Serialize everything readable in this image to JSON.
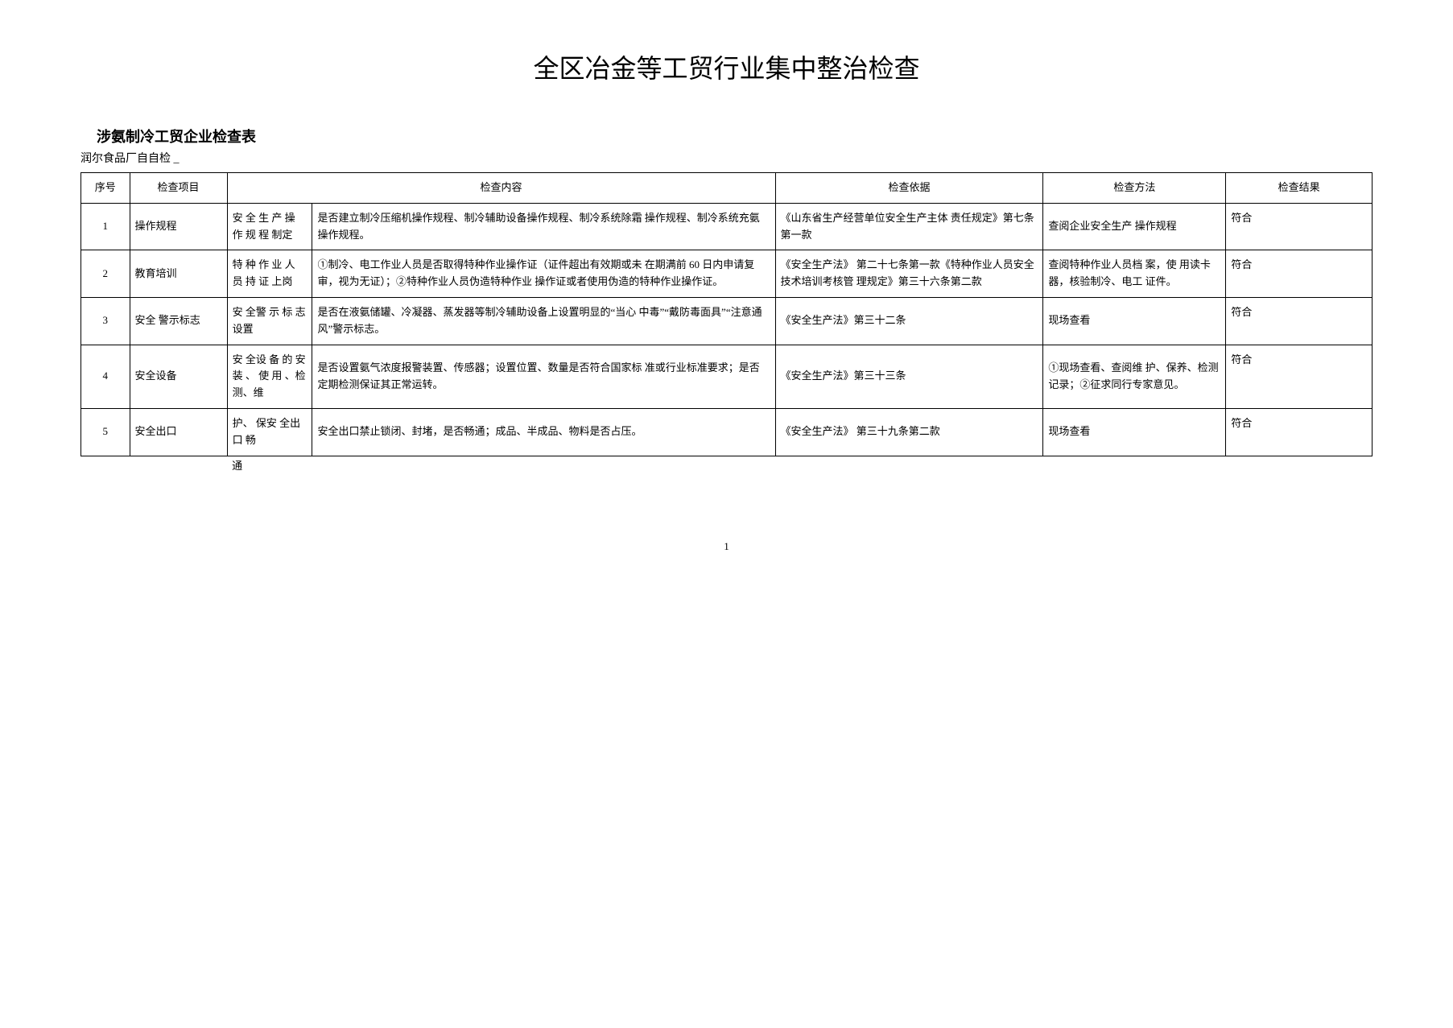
{
  "title": "全区冶金等工贸行业集中整治检查",
  "subtitle": "涉氨制冷工贸企业检查表",
  "subtext": "润尔食品厂自自检 _",
  "columns": [
    "序号",
    "检查项目",
    "",
    "检查内容",
    "检查依据",
    "检查方法",
    "检查结果"
  ],
  "rows": [
    {
      "seq": "1",
      "item": "操作规程",
      "sub": "安 全 生 产 操 作 规 程 制定",
      "content": "是否建立制冷压缩机操作规程、制冷辅助设备操作规程、制冷系统除霜  操作规程、制冷系统充氨操作规程。",
      "basis": "《山东省生产经营单位安全生产主体  责任规定》第七条第一款",
      "method": "查阅企业安全生产 操作规程",
      "result": "符合"
    },
    {
      "seq": "2",
      "item": "教育培训",
      "sub": "特 种 作 业 人 员 持 证 上岗",
      "content": "①制冷、电工作业人员是否取得特种作业操作证（证件超出有效期或未  在期满前 60 日内申请复审，视为无证）；②特种作业人员伪造特种作业  操作证或者使用伪造的特种作业操作证。",
      "basis": "《安全生产法》 第二十七条第一款《特种作业人员安全技术培训考核管  理规定》第三十六条第二款",
      "method": "查阅特种作业人员档 案，使 用读卡器，核验制冷、电工 证件。",
      "result": "符合"
    },
    {
      "seq": "3",
      "item": "安全 警示标志",
      "sub": "安 全警 示 标 志设置",
      "content": "是否在液氨储罐、冷凝器、蒸发器等制冷辅助设备上设置明显的“当心  中毒”“戴防毒面具”“注意通风”警示标志。",
      "basis": "《安全生产法》第三十二条",
      "method": "现场查看",
      "result": "符合"
    },
    {
      "seq": "4",
      "item": "安全设备",
      "sub": "安 全设 备 的 安 装 、 使 用 、检 测、维",
      "content": "是否设置氨气浓度报警装置、传感器；设置位置、数量是否符合国家标  准或行业标准要求；是否定期检测保证其正常运转。",
      "basis": "《安全生产法》第三十三条",
      "method": "①现场查看、查阅维 护、保养、检测记录；②征求同行专家意见。",
      "result": "符合"
    },
    {
      "seq": "5",
      "item": "安全出口",
      "sub": "护、 保安 全出口 畅",
      "content": "安全出口禁止锁闭、封堵，是否畅通；成品、半成品、物料是否占压。",
      "basis": "《安全生产法》 第三十九条第二款",
      "method": "现场查看",
      "result": "符合"
    }
  ],
  "trailing_sub": "通",
  "page_number": "1"
}
